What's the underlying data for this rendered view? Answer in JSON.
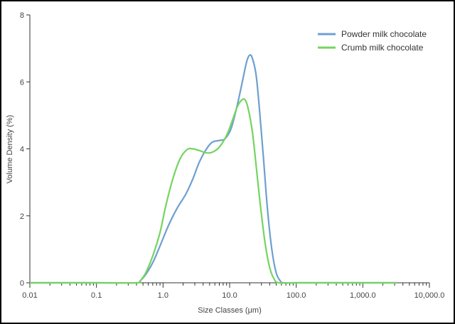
{
  "chart_data": {
    "type": "line",
    "xlabel": "Size Classes (μm)",
    "ylabel": "Volume Density (%)",
    "x_scale": "log",
    "xlim": [
      0.01,
      10000
    ],
    "ylim": [
      0,
      8
    ],
    "x_ticks": [
      0.01,
      0.1,
      1,
      10,
      100,
      1000,
      10000
    ],
    "x_tick_labels": [
      "0.01",
      "0.1",
      "1.0",
      "10.0",
      "100.0",
      "1,000.0",
      "10,000.0"
    ],
    "y_ticks": [
      0,
      2,
      4,
      6,
      8
    ],
    "y_tick_labels": [
      "0",
      "2",
      "4",
      "6",
      "8"
    ],
    "grid": false,
    "legend_position": "top-right",
    "series": [
      {
        "name": "Powder milk chocolate",
        "color": "#6f9fd0",
        "points": [
          [
            0.01,
            0
          ],
          [
            0.1,
            0
          ],
          [
            0.4,
            0
          ],
          [
            0.45,
            0.05
          ],
          [
            0.55,
            0.25
          ],
          [
            0.7,
            0.6
          ],
          [
            0.9,
            1.1
          ],
          [
            1.2,
            1.7
          ],
          [
            1.6,
            2.2
          ],
          [
            2.2,
            2.65
          ],
          [
            2.8,
            3.1
          ],
          [
            3.5,
            3.6
          ],
          [
            4.5,
            4.0
          ],
          [
            5.5,
            4.2
          ],
          [
            7.0,
            4.25
          ],
          [
            8.5,
            4.3
          ],
          [
            10.5,
            4.6
          ],
          [
            13,
            5.3
          ],
          [
            15.5,
            6.0
          ],
          [
            18,
            6.6
          ],
          [
            20,
            6.8
          ],
          [
            22,
            6.7
          ],
          [
            25,
            6.2
          ],
          [
            28,
            5.2
          ],
          [
            32,
            3.8
          ],
          [
            37,
            2.2
          ],
          [
            43,
            1.0
          ],
          [
            50,
            0.3
          ],
          [
            58,
            0.05
          ],
          [
            65,
            0
          ],
          [
            100,
            0
          ],
          [
            1000,
            0
          ],
          [
            3200,
            0
          ]
        ]
      },
      {
        "name": "Crumb milk chocolate",
        "color": "#74d460",
        "points": [
          [
            0.01,
            0
          ],
          [
            0.1,
            0
          ],
          [
            0.4,
            0
          ],
          [
            0.45,
            0.05
          ],
          [
            0.55,
            0.3
          ],
          [
            0.7,
            0.8
          ],
          [
            0.9,
            1.5
          ],
          [
            1.1,
            2.3
          ],
          [
            1.4,
            3.1
          ],
          [
            1.8,
            3.7
          ],
          [
            2.3,
            3.98
          ],
          [
            2.8,
            4.0
          ],
          [
            3.5,
            3.95
          ],
          [
            4.5,
            3.88
          ],
          [
            5.5,
            3.9
          ],
          [
            7,
            4.05
          ],
          [
            9,
            4.4
          ],
          [
            11,
            4.85
          ],
          [
            13,
            5.25
          ],
          [
            15,
            5.45
          ],
          [
            17,
            5.47
          ],
          [
            19,
            5.2
          ],
          [
            22,
            4.5
          ],
          [
            25,
            3.5
          ],
          [
            29,
            2.3
          ],
          [
            34,
            1.2
          ],
          [
            40,
            0.45
          ],
          [
            47,
            0.1
          ],
          [
            55,
            0
          ],
          [
            100,
            0
          ],
          [
            1000,
            0
          ],
          [
            3200,
            0
          ]
        ]
      }
    ]
  }
}
